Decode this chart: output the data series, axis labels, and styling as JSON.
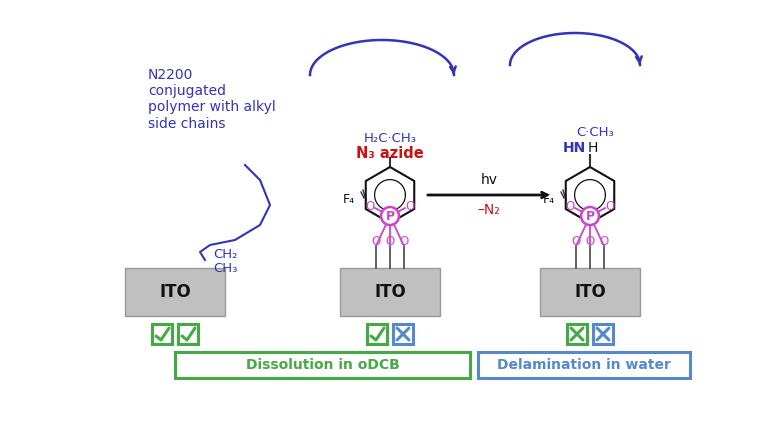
{
  "bg_color": "#ffffff",
  "blue": "#3333bb",
  "red": "#cc1111",
  "green": "#44aa44",
  "magenta": "#cc44cc",
  "gray": "#c0c0c0",
  "black": "#111111",
  "blue_box": "#5588cc",
  "label_left": "N2200\nconjugated\npolymer with alkyl\nside chains",
  "label_dissolution": "Dissolution in oDCB",
  "label_delamination": "Delamination in water",
  "label_hnu": "hv",
  "label_n2": "–N₂",
  "label_f4": "F₄",
  "label_n3azide_top": "H₂C·CH₃",
  "label_n3azide_bot": "N₃ azide",
  "label_cch3_top": "C·CH₃",
  "label_hn": "HN",
  "label_h": "H",
  "label_ch2": "CH₂",
  "label_ch3": "CH₃"
}
